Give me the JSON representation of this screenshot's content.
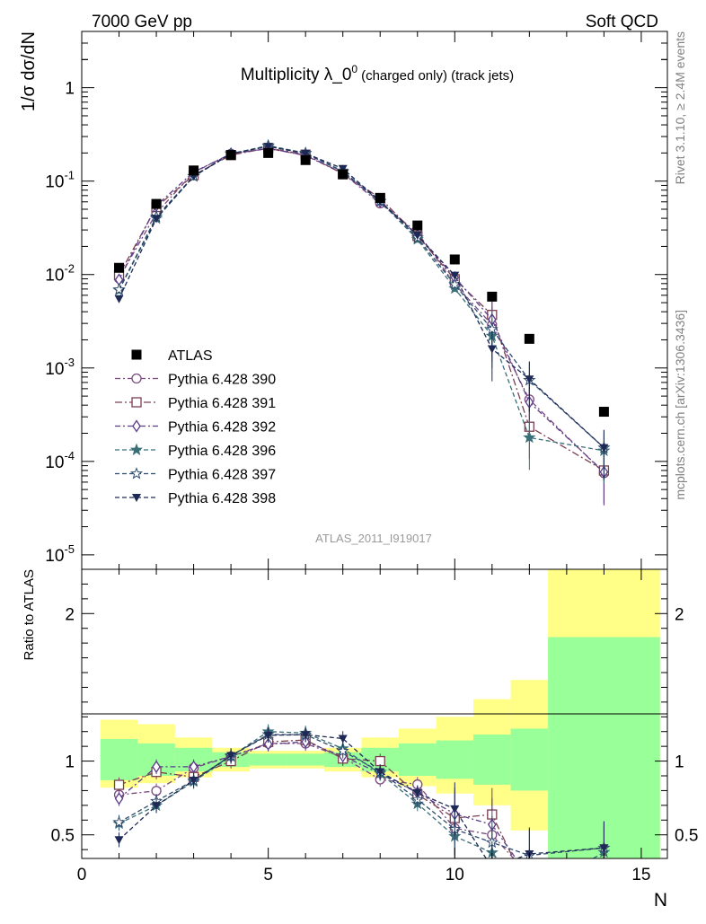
{
  "header": {
    "left": "7000 GeV pp",
    "right": "Soft QCD"
  },
  "side_text": {
    "rivet": "Rivet 3.1.10, ≥ 2.4M events",
    "mcplots": "mcplots.cern.ch [arXiv:1306.3436]"
  },
  "chart_data": {
    "type": "scatter",
    "title": "Multiplicity λ_0⁰ (charged only) (track jets)",
    "title_main": "Multiplicity λ_0",
    "title_sup": "0",
    "title_suffix": "(charged only) (track jets)",
    "watermark": "ATLAS_2011_I919017",
    "xlabel": "N",
    "ylabel": "1/σ dσ/dN",
    "ratio_ylabel": "Ratio to ATLAS",
    "xlim": [
      0,
      15.7
    ],
    "ylim": [
      7e-06,
      4
    ],
    "yscale": "log",
    "ratio_ylim": [
      0.34,
      2.3
    ],
    "x_ticks": [
      "0",
      "5",
      "10",
      "15"
    ],
    "ratio_ticks": [
      "0.5",
      "1",
      "2"
    ],
    "data": {
      "name": "ATLAS",
      "x": [
        1,
        2,
        3,
        4,
        5,
        6,
        7,
        8,
        9,
        10,
        11,
        12,
        14
      ],
      "y": [
        0.0118,
        0.057,
        0.13,
        0.19,
        0.2,
        0.168,
        0.118,
        0.066,
        0.0335,
        0.0145,
        0.0058,
        0.00205,
        0.00034
      ],
      "band_inner": [
        [
          0.87,
          1.15
        ],
        [
          0.9,
          1.12
        ],
        [
          0.93,
          1.09
        ],
        [
          0.96,
          1.06
        ],
        [
          0.97,
          1.05
        ],
        [
          0.97,
          1.05
        ],
        [
          0.96,
          1.06
        ],
        [
          0.93,
          1.09
        ],
        [
          0.9,
          1.12
        ],
        [
          0.88,
          1.14
        ],
        [
          0.84,
          1.18
        ],
        [
          0.8,
          1.22
        ],
        [
          0.34,
          1.84
        ]
      ],
      "band_outer": [
        [
          0.82,
          1.28
        ],
        [
          0.85,
          1.25
        ],
        [
          0.89,
          1.16
        ],
        [
          0.93,
          1.09
        ],
        [
          0.95,
          1.07
        ],
        [
          0.95,
          1.07
        ],
        [
          0.93,
          1.09
        ],
        [
          0.89,
          1.16
        ],
        [
          0.83,
          1.22
        ],
        [
          0.78,
          1.3
        ],
        [
          0.7,
          1.42
        ],
        [
          0.53,
          1.55
        ],
        [
          0.34,
          2.3
        ]
      ]
    },
    "series": [
      {
        "name": "Pythia 6.428 390",
        "marker": "circle-open",
        "color": "#7a4a7e",
        "dash": "6,3,2,3",
        "x": [
          1,
          2,
          3,
          4,
          5,
          6,
          7,
          8,
          9,
          10,
          11,
          12,
          14
        ],
        "y": [
          0.0091,
          0.0455,
          0.124,
          0.196,
          0.224,
          0.188,
          0.121,
          0.0578,
          0.0282,
          0.0079,
          0.0029,
          0.00046,
          7.5e-05
        ]
      },
      {
        "name": "Pythia 6.428 391",
        "marker": "square-open",
        "color": "#7a4050",
        "dash": "8,3,2,3",
        "x": [
          1,
          2,
          3,
          4,
          5,
          6,
          7,
          8,
          9,
          10,
          11,
          12,
          14
        ],
        "y": [
          0.0099,
          0.0528,
          0.116,
          0.19,
          0.226,
          0.192,
          0.12,
          0.066,
          0.0259,
          0.0089,
          0.0037,
          0.000235,
          8e-05
        ]
      },
      {
        "name": "Pythia 6.428 392",
        "marker": "diamond-open",
        "color": "#5a3b8a",
        "dash": "6,3,2,3",
        "x": [
          1,
          2,
          3,
          4,
          5,
          6,
          7,
          8,
          9,
          10,
          11,
          12,
          14
        ],
        "y": [
          0.0088,
          0.0548,
          0.125,
          0.196,
          0.223,
          0.19,
          0.122,
          0.0605,
          0.0263,
          0.0093,
          0.0033,
          0.00043,
          7.7e-05
        ]
      },
      {
        "name": "Pythia 6.428 396",
        "marker": "star-filled",
        "color": "#3a6f78",
        "dash": "5,3",
        "x": [
          1,
          2,
          3,
          4,
          5,
          6,
          7,
          8,
          9,
          10,
          11,
          12,
          14
        ],
        "y": [
          0.0068,
          0.0398,
          0.112,
          0.196,
          0.24,
          0.2,
          0.128,
          0.0605,
          0.0238,
          0.0071,
          0.0022,
          0.00018,
          0.00013
        ]
      },
      {
        "name": "Pythia 6.428 397",
        "marker": "star-open",
        "color": "#2c4a6e",
        "dash": "5,3",
        "x": [
          1,
          2,
          3,
          4,
          5,
          6,
          7,
          8,
          9,
          10,
          11,
          12,
          14
        ],
        "y": [
          0.0069,
          0.0415,
          0.113,
          0.197,
          0.236,
          0.198,
          0.126,
          0.0612,
          0.0248,
          0.0078,
          0.0026,
          0.00074,
          0.00014
        ]
      },
      {
        "name": "Pythia 6.428 398",
        "marker": "triangle-down-filled",
        "color": "#1e2a55",
        "dash": "5,3",
        "x": [
          1,
          2,
          3,
          4,
          5,
          6,
          7,
          8,
          9,
          10,
          11,
          12,
          14
        ],
        "y": [
          0.0055,
          0.0398,
          0.113,
          0.197,
          0.235,
          0.198,
          0.136,
          0.0612,
          0.0263,
          0.0098,
          0.0016,
          0.00076,
          0.00014
        ]
      }
    ]
  }
}
